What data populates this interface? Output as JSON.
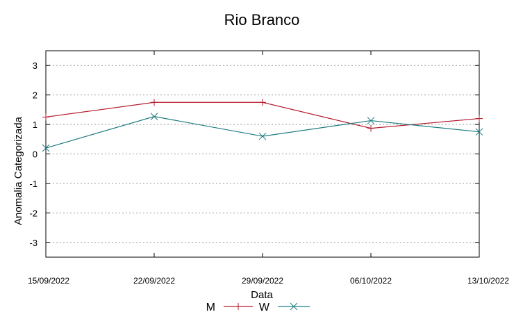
{
  "chart_data": {
    "type": "line",
    "title": "Rio Branco",
    "xlabel": "Data",
    "ylabel": "Anomalia Categorizada",
    "categories": [
      "15/09/2022",
      "22/09/2022",
      "29/09/2022",
      "06/10/2022",
      "13/10/2022"
    ],
    "ylim": [
      -3.5,
      3.5
    ],
    "yticks": [
      "3",
      "2",
      "1",
      "0",
      "-1",
      "-2",
      "-3"
    ],
    "ytick_values": [
      3,
      2,
      1,
      0,
      -1,
      -2,
      -3
    ],
    "grid": true,
    "legend_position": "bottom",
    "series": [
      {
        "name": "M",
        "color": "#b3192b",
        "marker": "plus",
        "values": [
          1.25,
          1.75,
          1.75,
          0.87,
          1.2
        ]
      },
      {
        "name": "W",
        "color": "#1d7a80",
        "marker": "cross",
        "values": [
          0.2,
          1.27,
          0.6,
          1.13,
          0.75
        ]
      }
    ]
  }
}
